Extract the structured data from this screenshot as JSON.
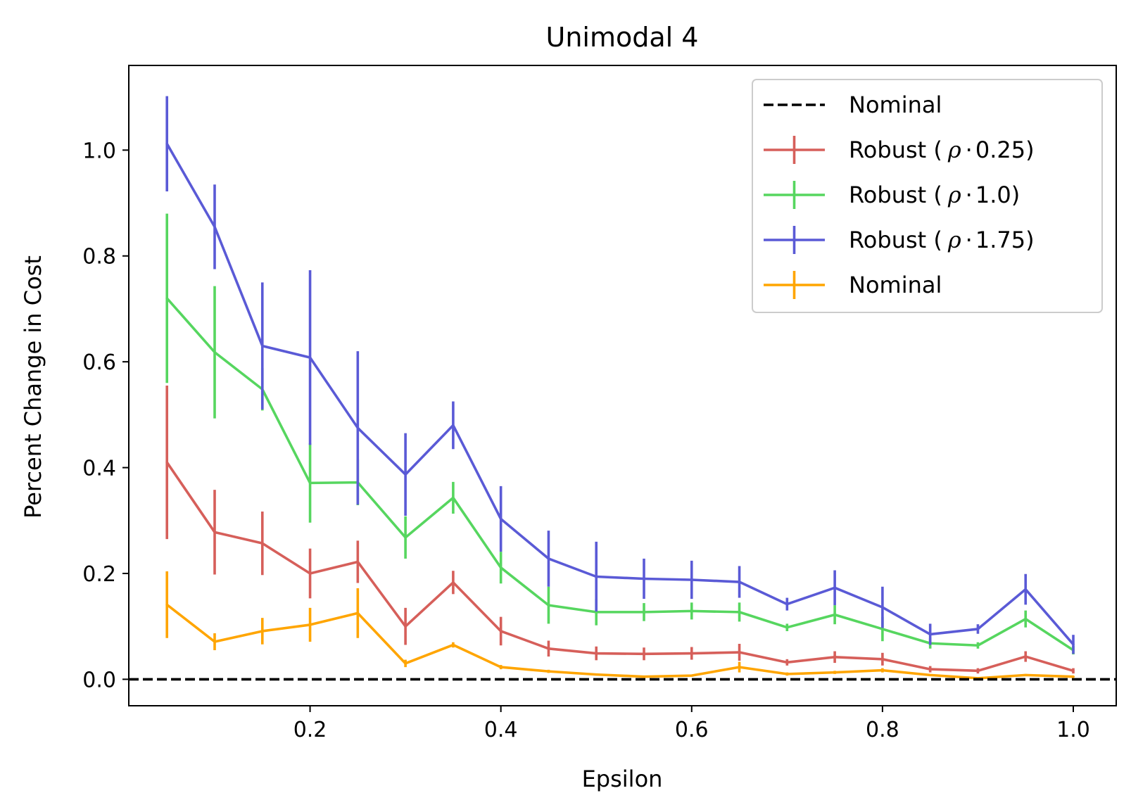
{
  "chart_data": {
    "type": "line",
    "title": "Unimodal 4",
    "xlabel": "Epsilon",
    "ylabel": "Percent Change in Cost",
    "xlim": [
      0.01,
      1.045
    ],
    "ylim": [
      -0.05,
      1.16
    ],
    "xticks": [
      0.2,
      0.4,
      0.6,
      0.8,
      1.0
    ],
    "xtick_labels": [
      "0.2",
      "0.4",
      "0.6",
      "0.8",
      "1.0"
    ],
    "yticks": [
      0.0,
      0.2,
      0.4,
      0.6,
      0.8,
      1.0
    ],
    "ytick_labels": [
      "0.0",
      "0.2",
      "0.4",
      "0.6",
      "0.8",
      "1.0"
    ],
    "grid": false,
    "legend_position": "top-right",
    "x": [
      0.05,
      0.1,
      0.15,
      0.2,
      0.25,
      0.3,
      0.35,
      0.4,
      0.45,
      0.5,
      0.55,
      0.6,
      0.65,
      0.7,
      0.75,
      0.8,
      0.85,
      0.9,
      0.95,
      1.0
    ],
    "baseline": {
      "name": "Nominal",
      "value": 0.0,
      "color": "#000000",
      "style": "dashed"
    },
    "series": [
      {
        "name": "Robust (",
        "rho": "ρ",
        "dot": "·",
        "param": "0.25)",
        "color": "#d65f5a",
        "values": [
          0.41,
          0.278,
          0.257,
          0.2,
          0.222,
          0.1,
          0.183,
          0.091,
          0.058,
          0.049,
          0.048,
          0.049,
          0.051,
          0.032,
          0.042,
          0.038,
          0.019,
          0.016,
          0.043,
          0.016
        ],
        "errors": [
          0.145,
          0.08,
          0.06,
          0.047,
          0.04,
          0.035,
          0.022,
          0.027,
          0.015,
          0.013,
          0.012,
          0.012,
          0.016,
          0.006,
          0.011,
          0.012,
          0.006,
          0.005,
          0.01,
          0.005
        ]
      },
      {
        "name": "Robust (",
        "rho": "ρ",
        "dot": "·",
        "param": "1.0)",
        "color": "#56d65f",
        "values": [
          0.72,
          0.618,
          0.548,
          0.371,
          0.372,
          0.268,
          0.343,
          0.211,
          0.14,
          0.127,
          0.127,
          0.129,
          0.127,
          0.098,
          0.122,
          0.095,
          0.068,
          0.064,
          0.114,
          0.055
        ],
        "errors": [
          0.16,
          0.125,
          0.04,
          0.075,
          0.043,
          0.04,
          0.03,
          0.03,
          0.035,
          0.025,
          0.017,
          0.016,
          0.018,
          0.007,
          0.018,
          0.023,
          0.01,
          0.006,
          0.016,
          0.008
        ]
      },
      {
        "name": "Robust (",
        "rho": "ρ",
        "dot": "·",
        "param": "1.75)",
        "color": "#5a5ad6",
        "values": [
          1.012,
          0.855,
          0.63,
          0.608,
          0.475,
          0.387,
          0.48,
          0.303,
          0.228,
          0.194,
          0.19,
          0.188,
          0.184,
          0.142,
          0.173,
          0.136,
          0.085,
          0.095,
          0.17,
          0.066
        ],
        "errors": [
          0.09,
          0.08,
          0.12,
          0.165,
          0.145,
          0.078,
          0.045,
          0.062,
          0.053,
          0.066,
          0.038,
          0.036,
          0.03,
          0.012,
          0.033,
          0.039,
          0.02,
          0.009,
          0.029,
          0.018
        ]
      },
      {
        "name": "Nominal",
        "color": "#ffa500",
        "values": [
          0.141,
          0.071,
          0.091,
          0.103,
          0.125,
          0.03,
          0.065,
          0.023,
          0.015,
          0.009,
          0.005,
          0.007,
          0.023,
          0.01,
          0.013,
          0.017,
          0.008,
          0.002,
          0.008,
          0.005
        ],
        "errors": [
          0.063,
          0.016,
          0.025,
          0.032,
          0.047,
          0.007,
          0.005,
          0.004,
          0.003,
          0.002,
          0.002,
          0.002,
          0.01,
          0.003,
          0.003,
          0.004,
          0.002,
          0.001,
          0.002,
          0.001
        ]
      }
    ]
  }
}
